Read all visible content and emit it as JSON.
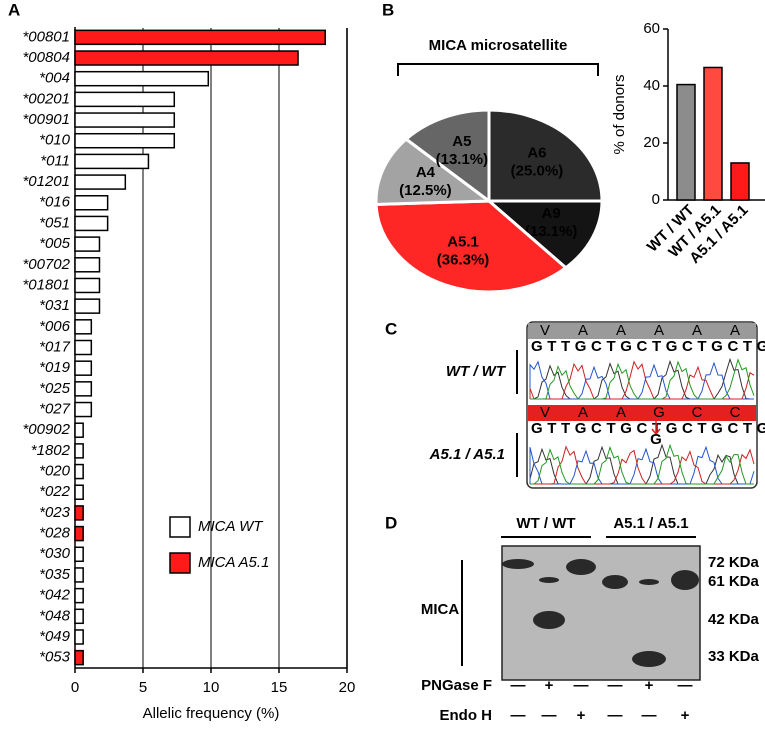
{
  "panel_labels": [
    "A",
    "B",
    "C",
    "D"
  ],
  "chart_data": [
    {
      "type": "hbar",
      "x_label": "Allelic frequency (%)",
      "categories": [
        "*00801",
        "*00804",
        "*004",
        "*00201",
        "*00901",
        "*010",
        "*011",
        "*01201",
        "*016",
        "*051",
        "*005",
        "*00702",
        "*01801",
        "*031",
        "*006",
        "*017",
        "*019",
        "*025",
        "*027",
        "*00902",
        "*1802",
        "*020",
        "*022",
        "*023",
        "*028",
        "*030",
        "*035",
        "*042",
        "*048",
        "*049",
        "*053"
      ],
      "series": [
        {
          "name": "MICA WT",
          "color": "#ffffff",
          "values": [
            null,
            null,
            9.8,
            7.3,
            7.3,
            7.3,
            5.4,
            3.7,
            2.4,
            2.4,
            1.8,
            1.8,
            1.8,
            1.8,
            1.2,
            1.2,
            1.2,
            1.2,
            1.2,
            0.6,
            0.6,
            0.6,
            0.6,
            null,
            null,
            0.6,
            0.6,
            0.6,
            0.6,
            0.6,
            null
          ]
        },
        {
          "name": "MICA A5.1",
          "color": "#ff1a1a",
          "values": [
            18.4,
            16.4,
            null,
            null,
            null,
            null,
            null,
            null,
            null,
            null,
            null,
            null,
            null,
            null,
            null,
            null,
            null,
            null,
            null,
            null,
            null,
            null,
            null,
            0.6,
            0.6,
            null,
            null,
            null,
            null,
            null,
            0.6
          ]
        }
      ],
      "xlim": [
        0,
        20
      ],
      "xticks": [
        0,
        5,
        10,
        15,
        20
      ],
      "grid": true
    },
    {
      "type": "pie",
      "title": "MICA microsatellite",
      "categories": [
        "A6",
        "A9",
        "A5.1",
        "A4",
        "A5"
      ],
      "values": [
        25.0,
        13.1,
        36.3,
        12.5,
        13.1
      ],
      "value_labels": [
        "(25.0%)",
        "(13.1%)",
        "(36.3%)",
        "(12.5%)",
        "(13.1%)"
      ],
      "colors": [
        "#2b2b2b",
        "#141414",
        "#ff2626",
        "#a3a3a3",
        "#666666"
      ]
    },
    {
      "type": "bar",
      "y_label": "% of donors",
      "categories": [
        "WT / WT",
        "WT / A5.1",
        "A5.1 / A5.1"
      ],
      "values": [
        40.5,
        46.5,
        13
      ],
      "colors": [
        "#8c8c8c",
        "#ff4a40",
        "#ff1a1a"
      ],
      "ylim": [
        0,
        60
      ],
      "yticks": [
        0,
        20,
        40,
        60
      ]
    }
  ],
  "sequence_panel": {
    "rows": [
      {
        "label": "WT / WT",
        "residues": [
          "V",
          "A",
          "A",
          "A",
          "A",
          "A"
        ],
        "bases": "GTTGCTGCTGCTGCTGCT"
      },
      {
        "label": "A5.1 / A5.1",
        "residues": [
          "V",
          "A",
          "A",
          "G",
          "C",
          "C"
        ],
        "bases": "GTTGCTGCTGCTGCTGC",
        "insertion": "G"
      }
    ]
  },
  "blot_panel": {
    "groups": [
      "WT / WT",
      "A5.1 / A5.1"
    ],
    "protein": "MICA",
    "markers": [
      "72 KDa",
      "61 KDa",
      "42 KDa",
      "33 KDa"
    ],
    "treatments": [
      {
        "name": "PNGase F",
        "signs": [
          "—",
          "+",
          "—",
          "—",
          "+",
          "—"
        ]
      },
      {
        "name": "Endo H",
        "signs": [
          "—",
          "—",
          "+",
          "—",
          "—",
          "+"
        ]
      }
    ]
  }
}
